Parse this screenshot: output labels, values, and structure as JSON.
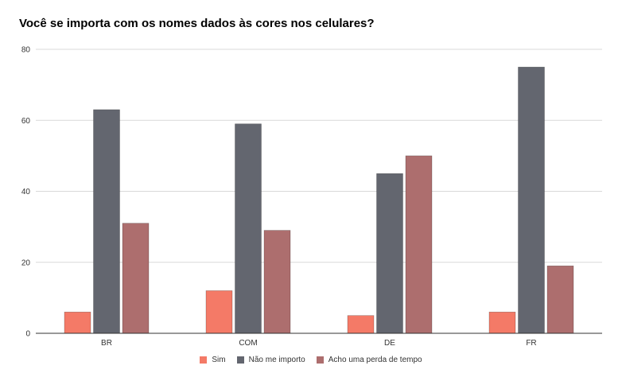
{
  "chart_data": {
    "type": "bar",
    "title": "Você se importa com os nomes dados às cores nos celulares?",
    "categories": [
      "BR",
      "COM",
      "DE",
      "FR"
    ],
    "series": [
      {
        "name": "Sim",
        "values": [
          6,
          12,
          5,
          6
        ],
        "color": "#f47a67"
      },
      {
        "name": "Não me importo",
        "values": [
          63,
          59,
          45,
          75
        ],
        "color": "#63666f"
      },
      {
        "name": "Acho uma perda de tempo",
        "values": [
          31,
          29,
          50,
          19
        ],
        "color": "#ad6e6e"
      }
    ],
    "ylim": [
      0,
      80
    ],
    "yticks": [
      0,
      20,
      40,
      60,
      80
    ],
    "grid": true,
    "legend_position": "bottom"
  }
}
